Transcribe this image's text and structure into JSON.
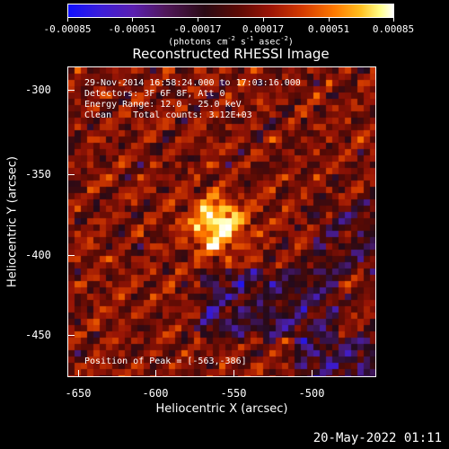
{
  "colorbar": {
    "tick_labels": [
      "-0.00085",
      "-0.00051",
      "-0.00017",
      "0.00017",
      "0.00051",
      "0.00085"
    ],
    "units": "(photons cm  s  asec )",
    "unit_exponents": [
      "-2",
      "-1",
      "-2"
    ]
  },
  "title": "Reconstructed RHESSI Image",
  "annotations": {
    "time": "29-Nov-2014 16:58:24.000 to 17:03:16.000",
    "detectors": "Detectors: 3F 6F 8F, Att 0",
    "energy": "Energy Range: 12.0 - 25.0 keV",
    "clean": "Clean    Total counts: 3.12E+03",
    "peak": "Position of Peak = [-563,-386]"
  },
  "axes": {
    "xlabel": "Heliocentric X (arcsec)",
    "ylabel": "Heliocentric Y (arcsec)",
    "xticks": [
      "-650",
      "-600",
      "-550",
      "-500"
    ],
    "yticks": [
      "-300",
      "-350",
      "-400",
      "-450"
    ]
  },
  "timestamp": "20-May-2022 01:11"
}
